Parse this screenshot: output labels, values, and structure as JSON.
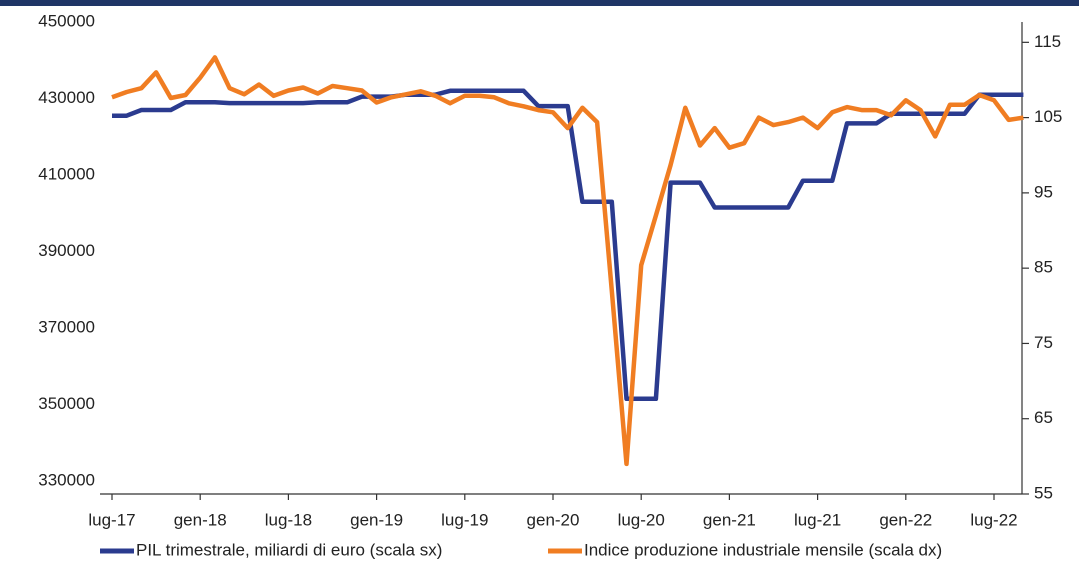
{
  "chart_data": {
    "type": "line",
    "categories": [
      "lug-17",
      null,
      null,
      null,
      null,
      null,
      "gen-18",
      null,
      null,
      null,
      null,
      null,
      "lug-18",
      null,
      null,
      null,
      null,
      null,
      "gen-19",
      null,
      null,
      null,
      null,
      null,
      "lug-19",
      null,
      null,
      null,
      null,
      null,
      "gen-20",
      null,
      null,
      null,
      null,
      null,
      "lug-20",
      null,
      null,
      null,
      null,
      null,
      "gen-21",
      null,
      null,
      null,
      null,
      null,
      "lug-21",
      null,
      null,
      null,
      null,
      null,
      "gen-22",
      null,
      null,
      null,
      null,
      null,
      "lug-22",
      null,
      null
    ],
    "series": [
      {
        "name": "PIL trimestrale, miliardi di euro (scala sx)",
        "color": "#2b3b8f",
        "axis": "y",
        "values": [
          425500,
          425500,
          427000,
          427000,
          427000,
          429000,
          429000,
          429000,
          428800,
          428800,
          428800,
          428800,
          428800,
          428800,
          429000,
          429000,
          429000,
          430500,
          430500,
          430500,
          431000,
          431000,
          431000,
          432000,
          432000,
          432000,
          432000,
          432000,
          432000,
          428000,
          428000,
          428000,
          403000,
          403000,
          403000,
          351500,
          351500,
          351500,
          408000,
          408000,
          408000,
          401500,
          401500,
          401500,
          401500,
          401500,
          401500,
          408500,
          408500,
          408500,
          423500,
          423500,
          423500,
          426000,
          426000,
          426000,
          426000,
          426000,
          426000,
          431000,
          431000,
          431000,
          431000
        ]
      },
      {
        "name": "Indice produzione industriale mensile (scala dx)",
        "color": "#f07d22",
        "axis": "y2",
        "values": [
          107.7,
          108.4,
          108.9,
          111,
          107.6,
          108,
          110.3,
          113,
          108.9,
          108.1,
          109.4,
          107.9,
          108.6,
          109,
          108.2,
          109.2,
          108.9,
          108.6,
          107,
          107.7,
          108.1,
          108.5,
          107.9,
          106.9,
          107.9,
          107.9,
          107.7,
          106.9,
          106.5,
          106,
          105.7,
          103.6,
          106.3,
          104.4,
          82,
          59,
          85.4,
          92,
          98.7,
          106.3,
          101.3,
          103.6,
          101,
          101.6,
          105,
          104,
          104.4,
          105,
          103.6,
          105.7,
          106.4,
          106,
          106,
          105.3,
          107.3,
          106,
          102.5,
          106.7,
          106.7,
          108,
          107.3,
          104.7,
          105
        ]
      }
    ],
    "ylim": [
      326600,
      450000
    ],
    "yticks": [
      330000,
      350000,
      370000,
      390000,
      410000,
      430000,
      450000
    ],
    "y2lim": [
      55,
      117.7
    ],
    "y2ticks": [
      55,
      65,
      75,
      85,
      95,
      105,
      115
    ]
  }
}
